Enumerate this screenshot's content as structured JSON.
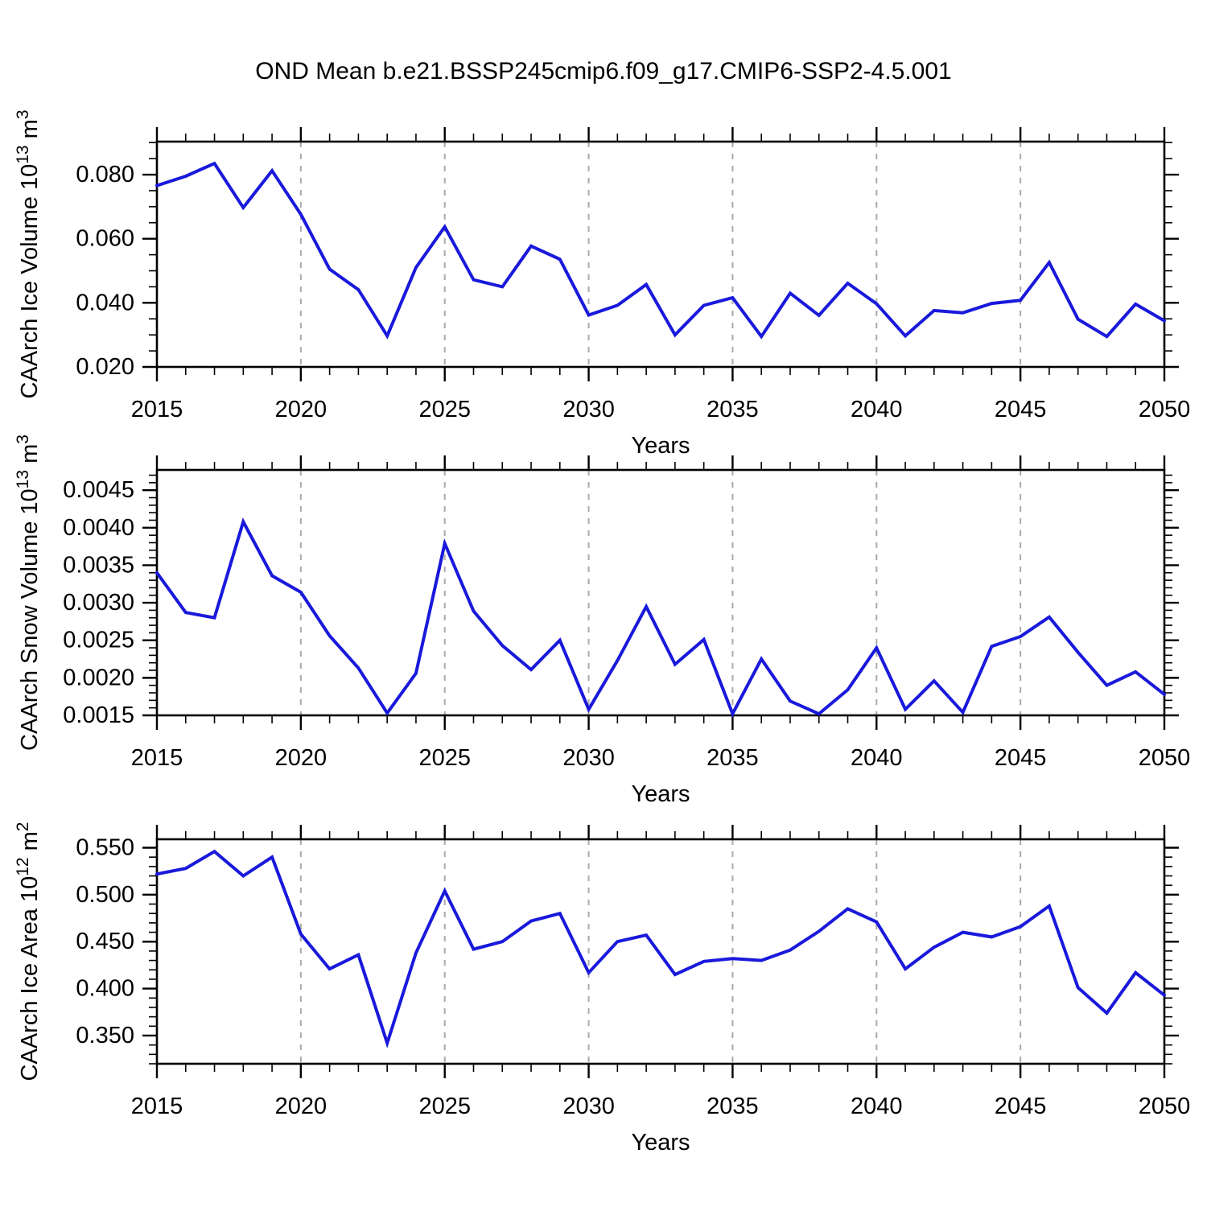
{
  "title": "OND Mean b.e21.BSSP245cmip6.f09_g17.CMIP6-SSP2-4.5.001",
  "colors": {
    "line": "#1919dc",
    "frame": "#000000",
    "grid": "#aaaaaa",
    "text": "#000000"
  },
  "x_axis": {
    "label": "Years",
    "start": 2015,
    "end": 2050,
    "major_step": 5,
    "minor_step": 1,
    "major_ticks": [
      2015,
      2020,
      2025,
      2030,
      2035,
      2040,
      2045,
      2050
    ],
    "major_tick_labels": [
      "2015",
      "2020",
      "2025",
      "2030",
      "2035",
      "2040",
      "2045",
      "2050"
    ],
    "grid_vertical_dashed_at": [
      2020,
      2025,
      2030,
      2035,
      2040,
      2045
    ]
  },
  "chart_data": [
    {
      "type": "line",
      "id": "ice-volume",
      "ylabel": "CAArch Ice Volume 10^13 m^3",
      "ylabel_parts": [
        {
          "text": "CAArch Ice Volume 10"
        },
        {
          "text": "13",
          "sup": true
        },
        {
          "text": " m"
        },
        {
          "text": "3",
          "sup": true
        }
      ],
      "xlabel": "Years",
      "ylim": [
        0.02,
        0.0903
      ],
      "y_major": [
        0.02,
        0.04,
        0.06,
        0.08
      ],
      "y_tick_labels": [
        "0.020",
        "0.040",
        "0.060",
        "0.080"
      ],
      "y_minor_step": 0.005,
      "x": [
        2015,
        2016,
        2017,
        2018,
        2019,
        2020,
        2021,
        2022,
        2023,
        2024,
        2025,
        2026,
        2027,
        2028,
        2029,
        2030,
        2031,
        2032,
        2033,
        2034,
        2035,
        2036,
        2037,
        2038,
        2039,
        2040,
        2041,
        2042,
        2043,
        2044,
        2045,
        2046,
        2047,
        2048,
        2049,
        2050
      ],
      "values": [
        0.0766,
        0.0795,
        0.0835,
        0.0697,
        0.0812,
        0.0676,
        0.0505,
        0.0441,
        0.0297,
        0.051,
        0.0637,
        0.0472,
        0.045,
        0.0577,
        0.0536,
        0.0362,
        0.0392,
        0.0457,
        0.03,
        0.0392,
        0.0416,
        0.0295,
        0.043,
        0.0361,
        0.0461,
        0.0397,
        0.0297,
        0.0376,
        0.0369,
        0.0398,
        0.0408,
        0.0526,
        0.0349,
        0.0295,
        0.0396,
        0.0344
      ]
    },
    {
      "type": "line",
      "id": "snow-volume",
      "ylabel": "CAArch Snow Volume 10^13 m^3",
      "ylabel_parts": [
        {
          "text": "CAArch Snow Volume 10"
        },
        {
          "text": "13",
          "sup": true
        },
        {
          "text": " m"
        },
        {
          "text": "3",
          "sup": true
        }
      ],
      "xlabel": "Years",
      "ylim": [
        0.0015,
        0.00477
      ],
      "y_major": [
        0.0015,
        0.002,
        0.0025,
        0.003,
        0.0035,
        0.004,
        0.0045
      ],
      "y_tick_labels": [
        "0.0015",
        "0.0020",
        "0.0025",
        "0.0030",
        "0.0035",
        "0.0040",
        "0.0045"
      ],
      "y_minor_step": 0.0001,
      "x": [
        2015,
        2016,
        2017,
        2018,
        2019,
        2020,
        2021,
        2022,
        2023,
        2024,
        2025,
        2026,
        2027,
        2028,
        2029,
        2030,
        2031,
        2032,
        2033,
        2034,
        2035,
        2036,
        2037,
        2038,
        2039,
        2040,
        2041,
        2042,
        2043,
        2044,
        2045,
        2046,
        2047,
        2048,
        2049,
        2050
      ],
      "values": [
        0.0034,
        0.00287,
        0.0028,
        0.00408,
        0.00336,
        0.00314,
        0.00256,
        0.00213,
        0.00153,
        0.00206,
        0.00379,
        0.00289,
        0.00243,
        0.00211,
        0.0025,
        0.00158,
        0.00223,
        0.00295,
        0.00218,
        0.00251,
        0.00152,
        0.00225,
        0.00169,
        0.00152,
        0.00184,
        0.0024,
        0.00158,
        0.00196,
        0.00154,
        0.00242,
        0.00255,
        0.00281,
        0.00234,
        0.0019,
        0.00208,
        0.00178
      ]
    },
    {
      "type": "line",
      "id": "ice-area",
      "ylabel": "CAArch Ice Area 10^12 m^2",
      "ylabel_parts": [
        {
          "text": "CAArch Ice Area 10"
        },
        {
          "text": "12",
          "sup": true
        },
        {
          "text": " m"
        },
        {
          "text": "2",
          "sup": true
        }
      ],
      "xlabel": "Years",
      "ylim": [
        0.32,
        0.559
      ],
      "y_major": [
        0.35,
        0.4,
        0.45,
        0.5,
        0.55
      ],
      "y_tick_labels": [
        "0.350",
        "0.400",
        "0.450",
        "0.500",
        "0.550"
      ],
      "y_minor_step": 0.01,
      "x": [
        2015,
        2016,
        2017,
        2018,
        2019,
        2020,
        2021,
        2022,
        2023,
        2024,
        2025,
        2026,
        2027,
        2028,
        2029,
        2030,
        2031,
        2032,
        2033,
        2034,
        2035,
        2036,
        2037,
        2038,
        2039,
        2040,
        2041,
        2042,
        2043,
        2044,
        2045,
        2046,
        2047,
        2048,
        2049,
        2050
      ],
      "values": [
        0.522,
        0.528,
        0.546,
        0.52,
        0.54,
        0.458,
        0.421,
        0.436,
        0.342,
        0.438,
        0.504,
        0.442,
        0.45,
        0.472,
        0.48,
        0.417,
        0.45,
        0.457,
        0.415,
        0.429,
        0.432,
        0.43,
        0.441,
        0.461,
        0.485,
        0.471,
        0.421,
        0.444,
        0.46,
        0.455,
        0.466,
        0.488,
        0.401,
        0.374,
        0.417,
        0.393
      ]
    }
  ]
}
